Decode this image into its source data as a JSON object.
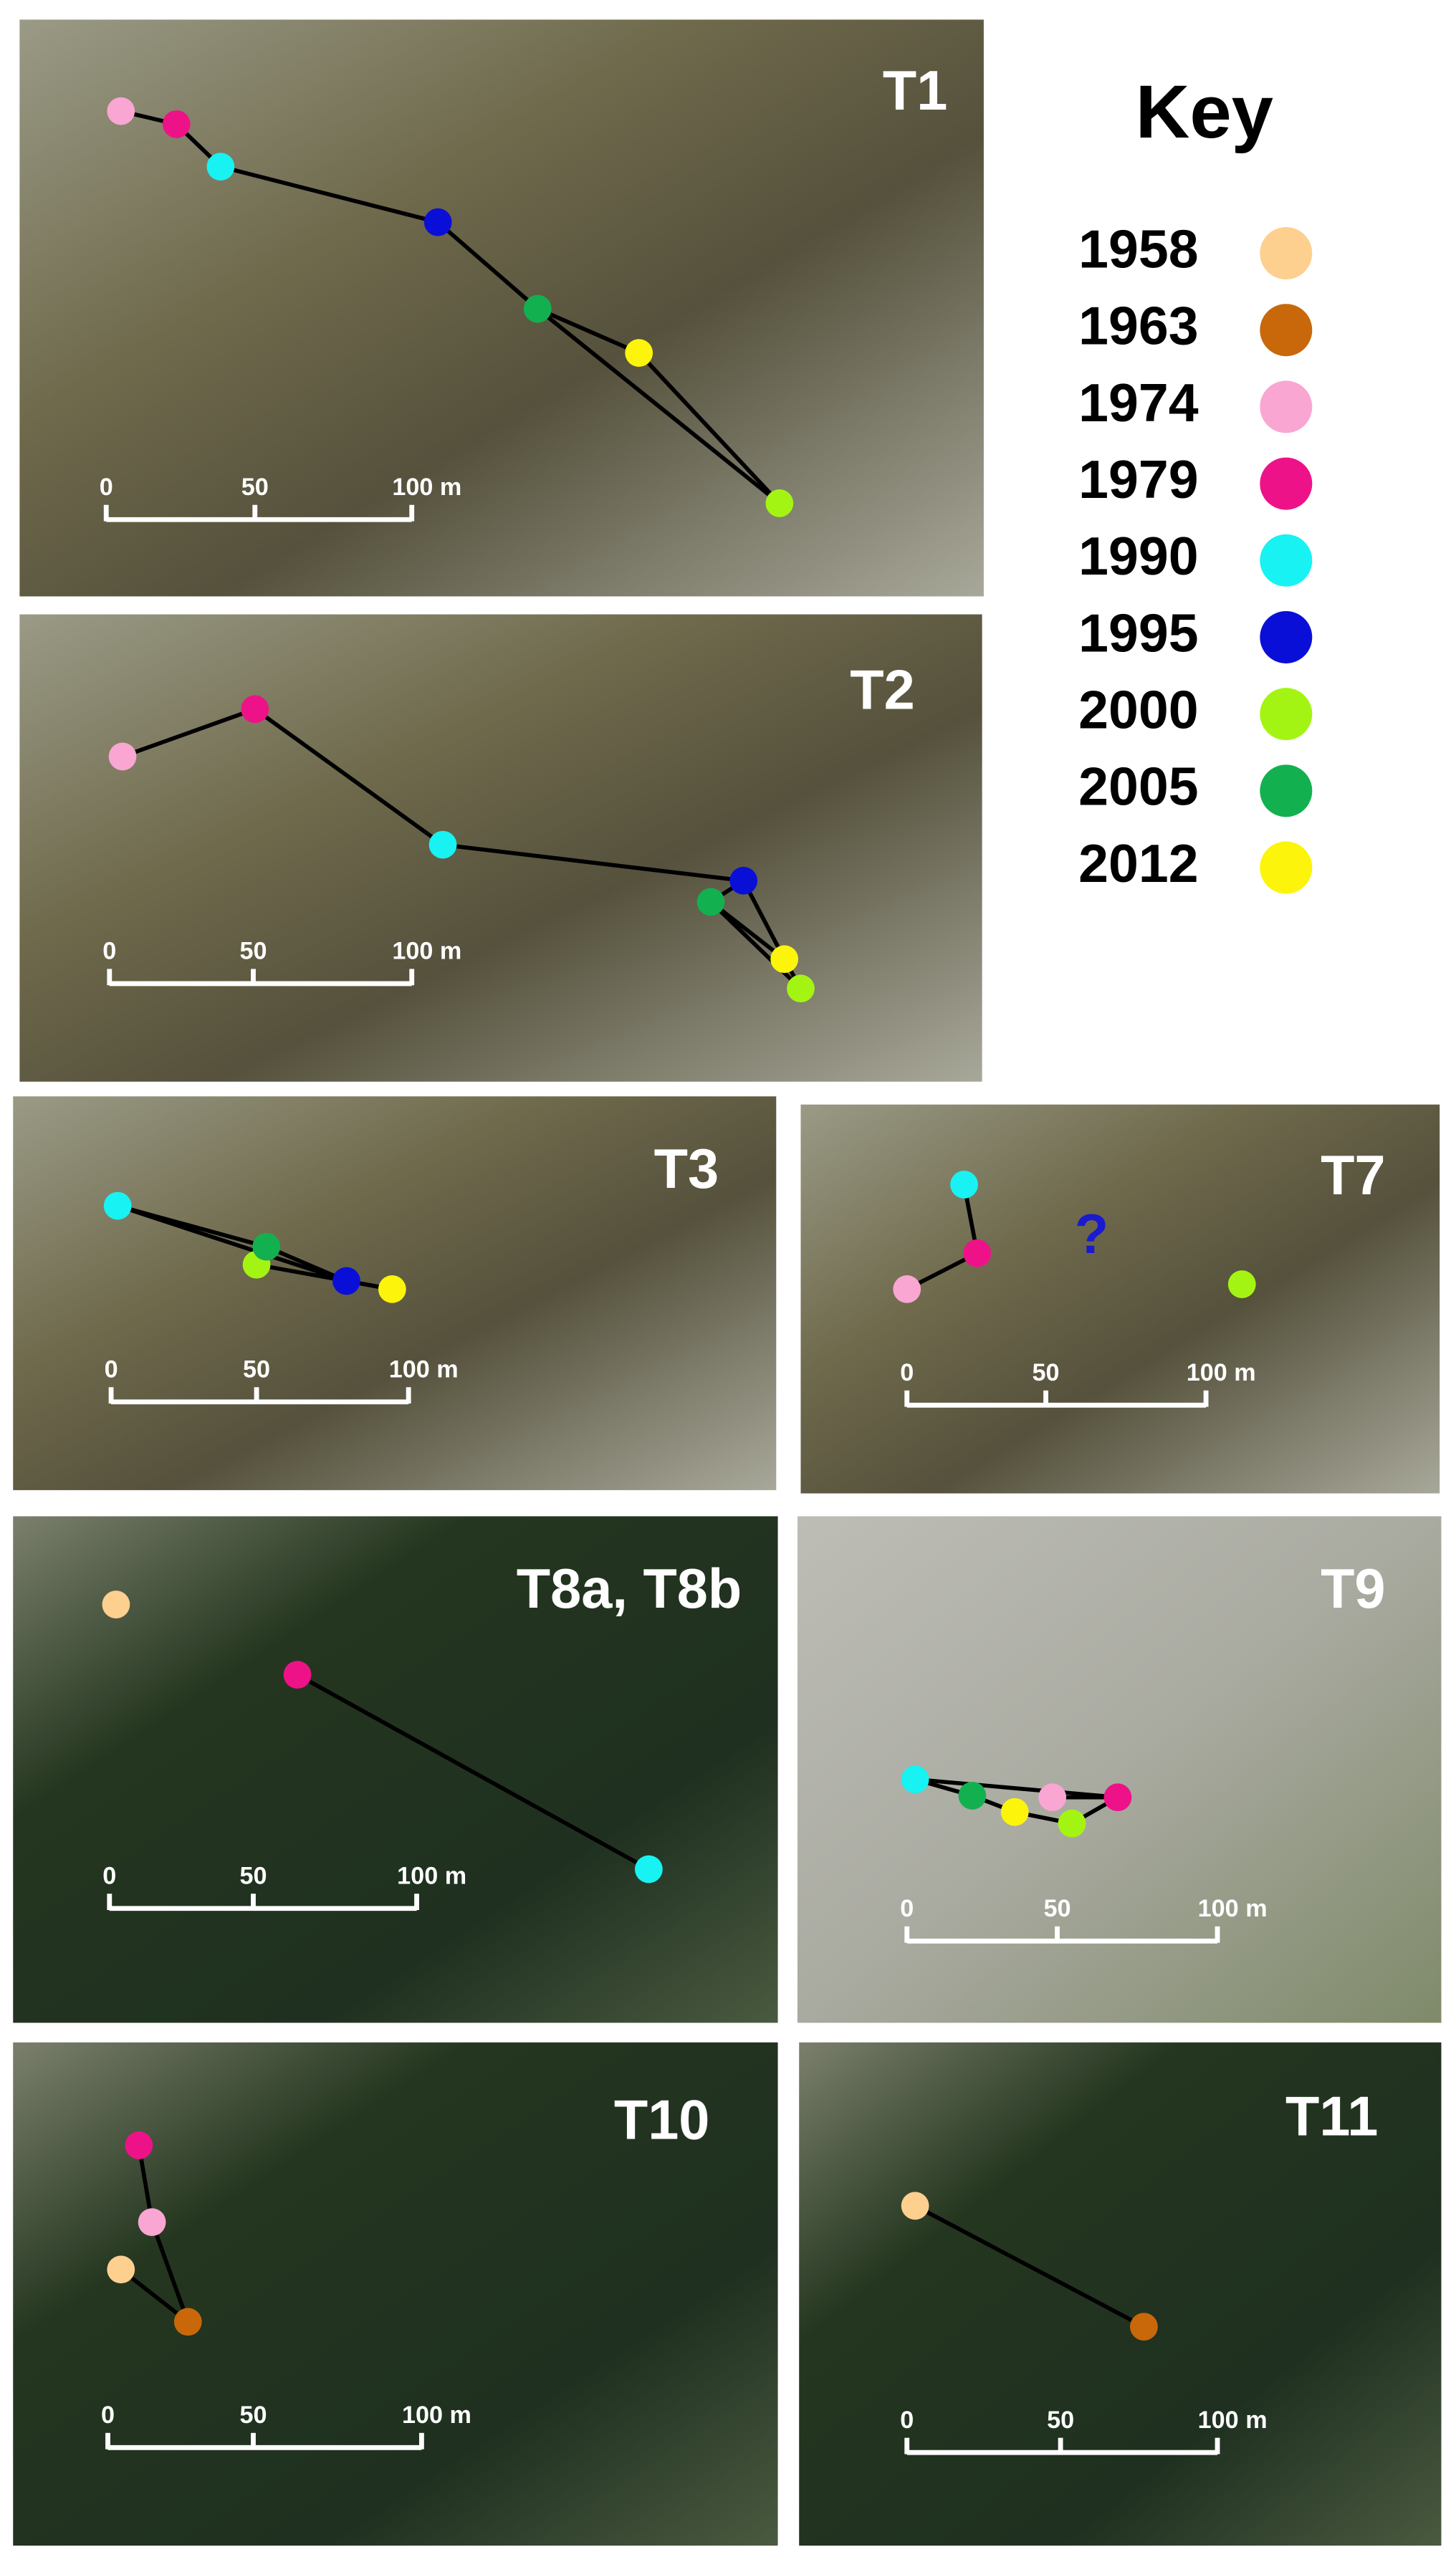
{
  "key": {
    "title": "Key",
    "entries": [
      {
        "year": "1958",
        "color": "#fdd08f"
      },
      {
        "year": "1963",
        "color": "#c8680a"
      },
      {
        "year": "1974",
        "color": "#f9a6d2"
      },
      {
        "year": "1979",
        "color": "#ee1289"
      },
      {
        "year": "1990",
        "color": "#18f2f2"
      },
      {
        "year": "1995",
        "color": "#0a0fd8"
      },
      {
        "year": "2000",
        "color": "#a4f413"
      },
      {
        "year": "2005",
        "color": "#13b050"
      },
      {
        "year": "2012",
        "color": "#fcf40a"
      }
    ]
  },
  "panels": [
    {
      "label": "T1",
      "scale_labels": [
        "0",
        "50",
        "100 m"
      ],
      "points": [
        "1974",
        "1979",
        "1990",
        "1995",
        "2000",
        "2005",
        "2012"
      ]
    },
    {
      "label": "T2",
      "scale_labels": [
        "0",
        "50",
        "100 m"
      ],
      "points": [
        "1974",
        "1979",
        "1990",
        "1995",
        "2000",
        "2005",
        "2012"
      ]
    },
    {
      "label": "T3",
      "scale_labels": [
        "0",
        "50",
        "100 m"
      ],
      "points": [
        "1990",
        "1995",
        "2000",
        "2005",
        "2012"
      ]
    },
    {
      "label": "T7",
      "scale_labels": [
        "0",
        "50",
        "100 m"
      ],
      "points": [
        "1974",
        "1979",
        "1990",
        "2000"
      ],
      "annotation": "?"
    },
    {
      "label": "T8a, T8b",
      "scale_labels": [
        "0",
        "50",
        "100 m"
      ],
      "points": [
        "1958",
        "1979",
        "1990"
      ]
    },
    {
      "label": "T9",
      "scale_labels": [
        "0",
        "50",
        "100 m"
      ],
      "points": [
        "1990",
        "2005",
        "2012",
        "1974",
        "2000",
        "1979"
      ]
    },
    {
      "label": "T10",
      "scale_labels": [
        "0",
        "50",
        "100 m"
      ],
      "points": [
        "1958",
        "1963",
        "1974",
        "1979"
      ]
    },
    {
      "label": "T11",
      "scale_labels": [
        "0",
        "50",
        "100 m"
      ],
      "points": [
        "1958",
        "1963"
      ]
    }
  ]
}
